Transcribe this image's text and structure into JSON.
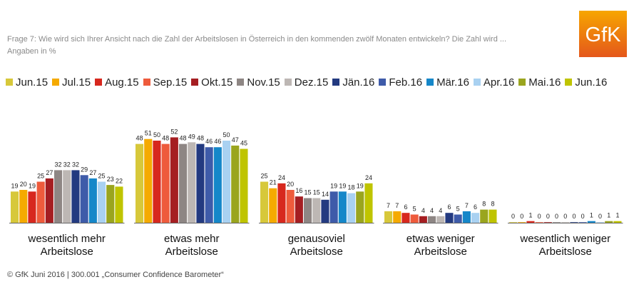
{
  "header": {
    "question": "Frage 7: Wie wird sich Ihrer Ansicht nach die Zahl der Arbeitslosen in Österreich in den kommenden zwölf Monaten entwickeln? Die Zahl wird ...",
    "unit_note": "Angaben in %"
  },
  "logo": {
    "text": "GfK",
    "color_top": "#F7A600",
    "color_bottom": "#E4571B"
  },
  "footer": {
    "source": "© GfK Juni 2016 | 300.001 „Consumer Confidence Barometer“"
  },
  "chart_data": {
    "type": "bar",
    "categories": [
      [
        "wesentlich mehr",
        "Arbeitslose"
      ],
      [
        "etwas mehr",
        "Arbeitslose"
      ],
      [
        "genausoviel",
        "Arbeitslose"
      ],
      [
        "etwas weniger",
        "Arbeitslose"
      ],
      [
        "wesentlich weniger",
        "Arbeitslose"
      ]
    ],
    "series": [
      {
        "name": "Jun.15",
        "color": "#D7C83A",
        "values": [
          19,
          48,
          25,
          7,
          0
        ]
      },
      {
        "name": "Jul.15",
        "color": "#F5AA00",
        "values": [
          20,
          51,
          21,
          7,
          0
        ]
      },
      {
        "name": "Aug.15",
        "color": "#D7281E",
        "values": [
          19,
          50,
          24,
          6,
          1
        ]
      },
      {
        "name": "Sep.15",
        "color": "#EE5B3C",
        "values": [
          25,
          48,
          20,
          5,
          0
        ]
      },
      {
        "name": "Okt.15",
        "color": "#A51E22",
        "values": [
          27,
          52,
          16,
          4,
          0
        ]
      },
      {
        "name": "Nov.15",
        "color": "#8E8684",
        "values": [
          32,
          48,
          15,
          4,
          0
        ]
      },
      {
        "name": "Dez.15",
        "color": "#BDB7B4",
        "values": [
          32,
          49,
          15,
          4,
          0
        ]
      },
      {
        "name": "Jän.16",
        "color": "#233A80",
        "values": [
          32,
          48,
          14,
          6,
          0
        ]
      },
      {
        "name": "Feb.16",
        "color": "#3E5BA9",
        "values": [
          29,
          46,
          19,
          5,
          0
        ]
      },
      {
        "name": "Mär.16",
        "color": "#1587C9",
        "values": [
          27,
          46,
          19,
          7,
          1
        ]
      },
      {
        "name": "Apr.16",
        "color": "#A9D1F1",
        "values": [
          25,
          50,
          18,
          6,
          0
        ]
      },
      {
        "name": "Mai.16",
        "color": "#9AA51E",
        "values": [
          23,
          47,
          19,
          8,
          1
        ]
      },
      {
        "name": "Jun.16",
        "color": "#BFC400",
        "values": [
          22,
          45,
          24,
          8,
          1
        ]
      }
    ],
    "ylim": [
      0,
      60
    ],
    "grid": false,
    "legend": "top",
    "data_labels": true
  }
}
